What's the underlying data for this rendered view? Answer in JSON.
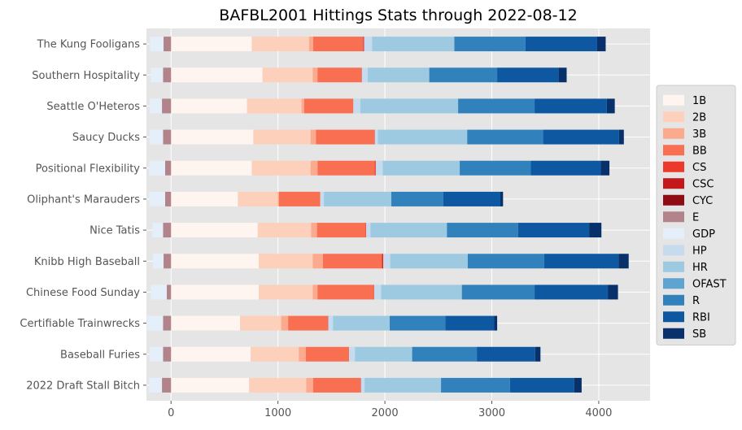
{
  "chart_data": {
    "type": "bar",
    "orientation": "horizontal",
    "stacked": true,
    "title": "BAFBL2001 Hittings Stats through 2022-08-12",
    "xlabel": "",
    "ylabel": "",
    "xlim": [
      -230,
      4480
    ],
    "xticks": [
      0,
      1000,
      2000,
      3000,
      4000
    ],
    "grid": true,
    "legend_position": "right",
    "categories": [
      "The Kung Fooligans",
      "Southern Hospitality",
      "Seattle O'Heteros",
      "Saucy Ducks",
      "Positional Flexibility",
      "Oliphant's Marauders",
      "Nice Tatis",
      "Knibb High Baseball",
      "Chinese Food Sunday",
      "Certifiable Trainwrecks",
      "Baseball Furies",
      "2022 Draft Stall Bitch"
    ],
    "series": [
      {
        "name": "1B",
        "color": "#fff5f0",
        "values": [
          755,
          855,
          710,
          770,
          755,
          625,
          810,
          820,
          820,
          645,
          745,
          730
        ]
      },
      {
        "name": "2B",
        "color": "#fdd0bc",
        "values": [
          535,
          470,
          510,
          535,
          550,
          375,
          500,
          505,
          505,
          385,
          450,
          535
        ]
      },
      {
        "name": "3B",
        "color": "#fcaa8d",
        "values": [
          40,
          45,
          25,
          50,
          65,
          10,
          55,
          95,
          45,
          65,
          65,
          65
        ]
      },
      {
        "name": "BB",
        "color": "#f86f52",
        "values": [
          465,
          410,
          460,
          545,
          535,
          385,
          455,
          550,
          525,
          370,
          405,
          440
        ]
      },
      {
        "name": "CS",
        "color": "#ed392b",
        "values": [
          5,
          5,
          0,
          5,
          10,
          0,
          5,
          10,
          5,
          5,
          0,
          5
        ]
      },
      {
        "name": "CSC",
        "color": "#c2181c",
        "values": [
          5,
          0,
          0,
          0,
          0,
          0,
          0,
          5,
          0,
          0,
          0,
          0
        ]
      },
      {
        "name": "CYC",
        "color": "#8f0c14",
        "values": [
          0,
          0,
          0,
          0,
          0,
          0,
          0,
          0,
          0,
          0,
          0,
          0
        ]
      },
      {
        "name": "E",
        "color": "#b3838b",
        "values": [
          -70,
          -75,
          -85,
          -75,
          -55,
          -55,
          -75,
          -70,
          -40,
          -75,
          -75,
          -85
        ]
      },
      {
        "name": "GDP",
        "color": "#e5eff9",
        "values": [
          -125,
          -115,
          -115,
          -125,
          -150,
          -150,
          -100,
          -100,
          -150,
          -150,
          -125,
          -120
        ]
      },
      {
        "name": "HP",
        "color": "#c7dbee",
        "values": [
          75,
          55,
          65,
          30,
          65,
          35,
          40,
          65,
          65,
          45,
          55,
          35
        ]
      },
      {
        "name": "HR",
        "color": "#9dc9e1",
        "values": [
          770,
          575,
          915,
          835,
          720,
          630,
          715,
          725,
          755,
          530,
          535,
          715
        ]
      },
      {
        "name": "OFAST",
        "color": "#5fa3d0",
        "values": [
          0,
          0,
          0,
          0,
          0,
          0,
          0,
          0,
          0,
          0,
          0,
          0
        ]
      },
      {
        "name": "R",
        "color": "#3181bd",
        "values": [
          665,
          635,
          715,
          710,
          665,
          485,
          665,
          715,
          680,
          520,
          605,
          645
        ]
      },
      {
        "name": "RBI",
        "color": "#0d58a1",
        "values": [
          670,
          575,
          675,
          710,
          655,
          535,
          665,
          695,
          685,
          455,
          545,
          600
        ]
      },
      {
        "name": "SB",
        "color": "#08306b",
        "values": [
          80,
          75,
          75,
          45,
          80,
          25,
          115,
          95,
          95,
          30,
          50,
          70
        ]
      }
    ]
  }
}
